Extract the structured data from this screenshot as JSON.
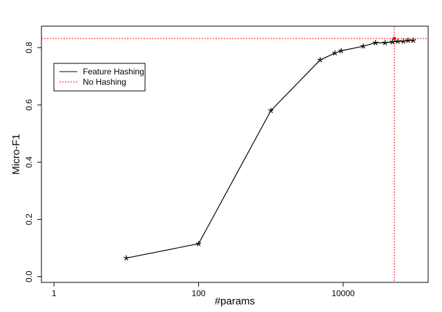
{
  "chart_data": {
    "type": "line",
    "xlabel": "#params",
    "ylabel": "Micro-F1",
    "log_x": true,
    "xlim": [
      0.67,
      150000
    ],
    "xticks": [
      1,
      100,
      10000
    ],
    "ylim": [
      -0.02,
      0.875
    ],
    "yticks": [
      {
        "value": 0,
        "label": "0.0"
      },
      0.2,
      0.4,
      0.6,
      0.8
    ],
    "legend": "top-left",
    "series": [
      {
        "name": "Feature Hashing",
        "color": "#000000",
        "x": [
          10,
          100,
          1000,
          4800,
          7700,
          9400,
          19000,
          28000,
          38000,
          48000,
          57000,
          68000,
          79000,
          93000
        ],
        "values": [
          0.065,
          0.115,
          0.58,
          0.757,
          0.781,
          0.789,
          0.805,
          0.817,
          0.817,
          0.82,
          0.822,
          0.822,
          0.825,
          0.825
        ]
      }
    ],
    "reference": {
      "name": "No Hashing",
      "color": "#ff0000",
      "x": 51000,
      "y": 0.832
    }
  }
}
